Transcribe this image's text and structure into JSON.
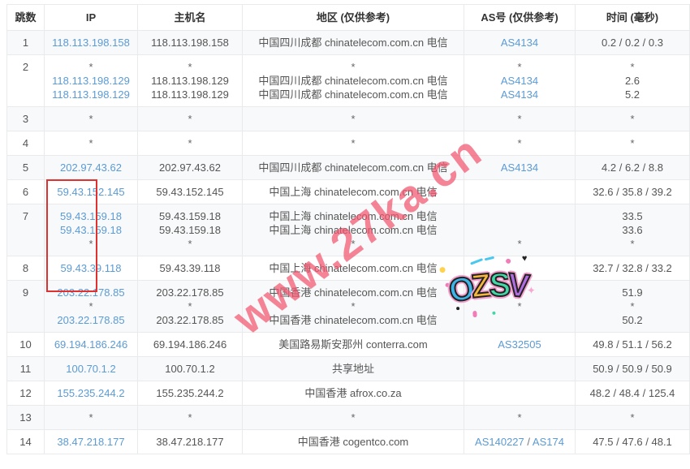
{
  "header": {
    "columns": [
      "跳数",
      "IP",
      "主机名",
      "地区 (仅供参考)",
      "AS号 (仅供参考)",
      "时间 (毫秒)"
    ]
  },
  "table": {
    "rows": [
      {
        "hop": "1",
        "lines": [
          {
            "ip": "118.113.198.158",
            "host": "118.113.198.158",
            "region": "中国四川成都 chinatelecom.com.cn 电信",
            "as": "AS4134",
            "time": "0.2 / 0.2 / 0.3"
          }
        ]
      },
      {
        "hop": "2",
        "lines": [
          {
            "ip": "*",
            "host": "*",
            "region": "*",
            "as": "*",
            "time": "*"
          },
          {
            "ip": "118.113.198.129",
            "host": "118.113.198.129",
            "region": "中国四川成都 chinatelecom.com.cn 电信",
            "as": "AS4134",
            "time": "2.6"
          },
          {
            "ip": "118.113.198.129",
            "host": "118.113.198.129",
            "region": "中国四川成都 chinatelecom.com.cn 电信",
            "as": "AS4134",
            "time": "5.2"
          }
        ]
      },
      {
        "hop": "3",
        "lines": [
          {
            "ip": "*",
            "host": "*",
            "region": "*",
            "as": "*",
            "time": "*"
          }
        ]
      },
      {
        "hop": "4",
        "lines": [
          {
            "ip": "*",
            "host": "*",
            "region": "*",
            "as": "*",
            "time": "*"
          }
        ]
      },
      {
        "hop": "5",
        "lines": [
          {
            "ip": "202.97.43.62",
            "host": "202.97.43.62",
            "region": "中国四川成都 chinatelecom.com.cn 电信",
            "as": "AS4134",
            "time": "4.2 / 6.2 / 8.8"
          }
        ]
      },
      {
        "hop": "6",
        "lines": [
          {
            "ip": "59.43.152.145",
            "host": "59.43.152.145",
            "region": "中国上海 chinatelecom.com.cn 电信",
            "as": "",
            "time": "32.6 / 35.8 / 39.2"
          }
        ]
      },
      {
        "hop": "7",
        "lines": [
          {
            "ip": "59.43.159.18",
            "host": "59.43.159.18",
            "region": "中国上海 chinatelecom.com.cn 电信",
            "as": "",
            "time": "33.5"
          },
          {
            "ip": "59.43.159.18",
            "host": "59.43.159.18",
            "region": "中国上海 chinatelecom.com.cn 电信",
            "as": "",
            "time": "33.6"
          },
          {
            "ip": "*",
            "host": "*",
            "region": "*",
            "as": "*",
            "time": "*"
          }
        ]
      },
      {
        "hop": "8",
        "lines": [
          {
            "ip": "59.43.39.118",
            "host": "59.43.39.118",
            "region": "中国上海 chinatelecom.com.cn 电信",
            "as": "",
            "time": "32.7 / 32.8 / 33.2"
          }
        ]
      },
      {
        "hop": "9",
        "lines": [
          {
            "ip": "203.22.178.85",
            "host": "203.22.178.85",
            "region": "中国香港 chinatelecom.com.cn 电信",
            "as": "",
            "time": "51.9"
          },
          {
            "ip": "*",
            "host": "*",
            "region": "*",
            "as": "*",
            "time": "*"
          },
          {
            "ip": "203.22.178.85",
            "host": "203.22.178.85",
            "region": "中国香港 chinatelecom.com.cn 电信",
            "as": "",
            "time": "50.2"
          }
        ]
      },
      {
        "hop": "10",
        "lines": [
          {
            "ip": "69.194.186.246",
            "host": "69.194.186.246",
            "region": "美国路易斯安那州 conterra.com",
            "as": "AS32505",
            "time": "49.8 / 51.1 / 56.2"
          }
        ]
      },
      {
        "hop": "11",
        "lines": [
          {
            "ip": "100.70.1.2",
            "host": "100.70.1.2",
            "region": "共享地址",
            "as": "",
            "time": "50.9 / 50.9 / 50.9"
          }
        ]
      },
      {
        "hop": "12",
        "lines": [
          {
            "ip": "155.235.244.2",
            "host": "155.235.244.2",
            "region": "中国香港 afrox.co.za",
            "as": "",
            "time": "48.2 / 48.4 / 125.4"
          }
        ]
      },
      {
        "hop": "13",
        "lines": [
          {
            "ip": "*",
            "host": "*",
            "region": "*",
            "as": "*",
            "time": "*"
          }
        ]
      },
      {
        "hop": "14",
        "lines": [
          {
            "ip": "38.47.218.177",
            "host": "38.47.218.177",
            "region": "中国香港 cogentco.com",
            "as": "AS140227 / AS174",
            "time": "47.5 / 47.6 / 48.1"
          }
        ]
      }
    ]
  },
  "watermark": {
    "text": "www.27ka.cn",
    "color": "#f2546f"
  },
  "sticker": {
    "letters": [
      "O",
      "Z",
      "S",
      "V"
    ],
    "heart": "♥",
    "sparkle": "✦"
  },
  "colors": {
    "link_blue": "#5b9bd5",
    "text_gray": "#555555",
    "header_text": "#333333",
    "border": "#e8eaec",
    "stripe": "#f8f9fa",
    "annotation_red": "#e03131",
    "watermark_pink": "#f2546f",
    "sticker_o": "#3cb4e7",
    "sticker_z": "#f6b73c",
    "sticker_s": "#43d6a6",
    "sticker_v": "#b06ce0"
  }
}
